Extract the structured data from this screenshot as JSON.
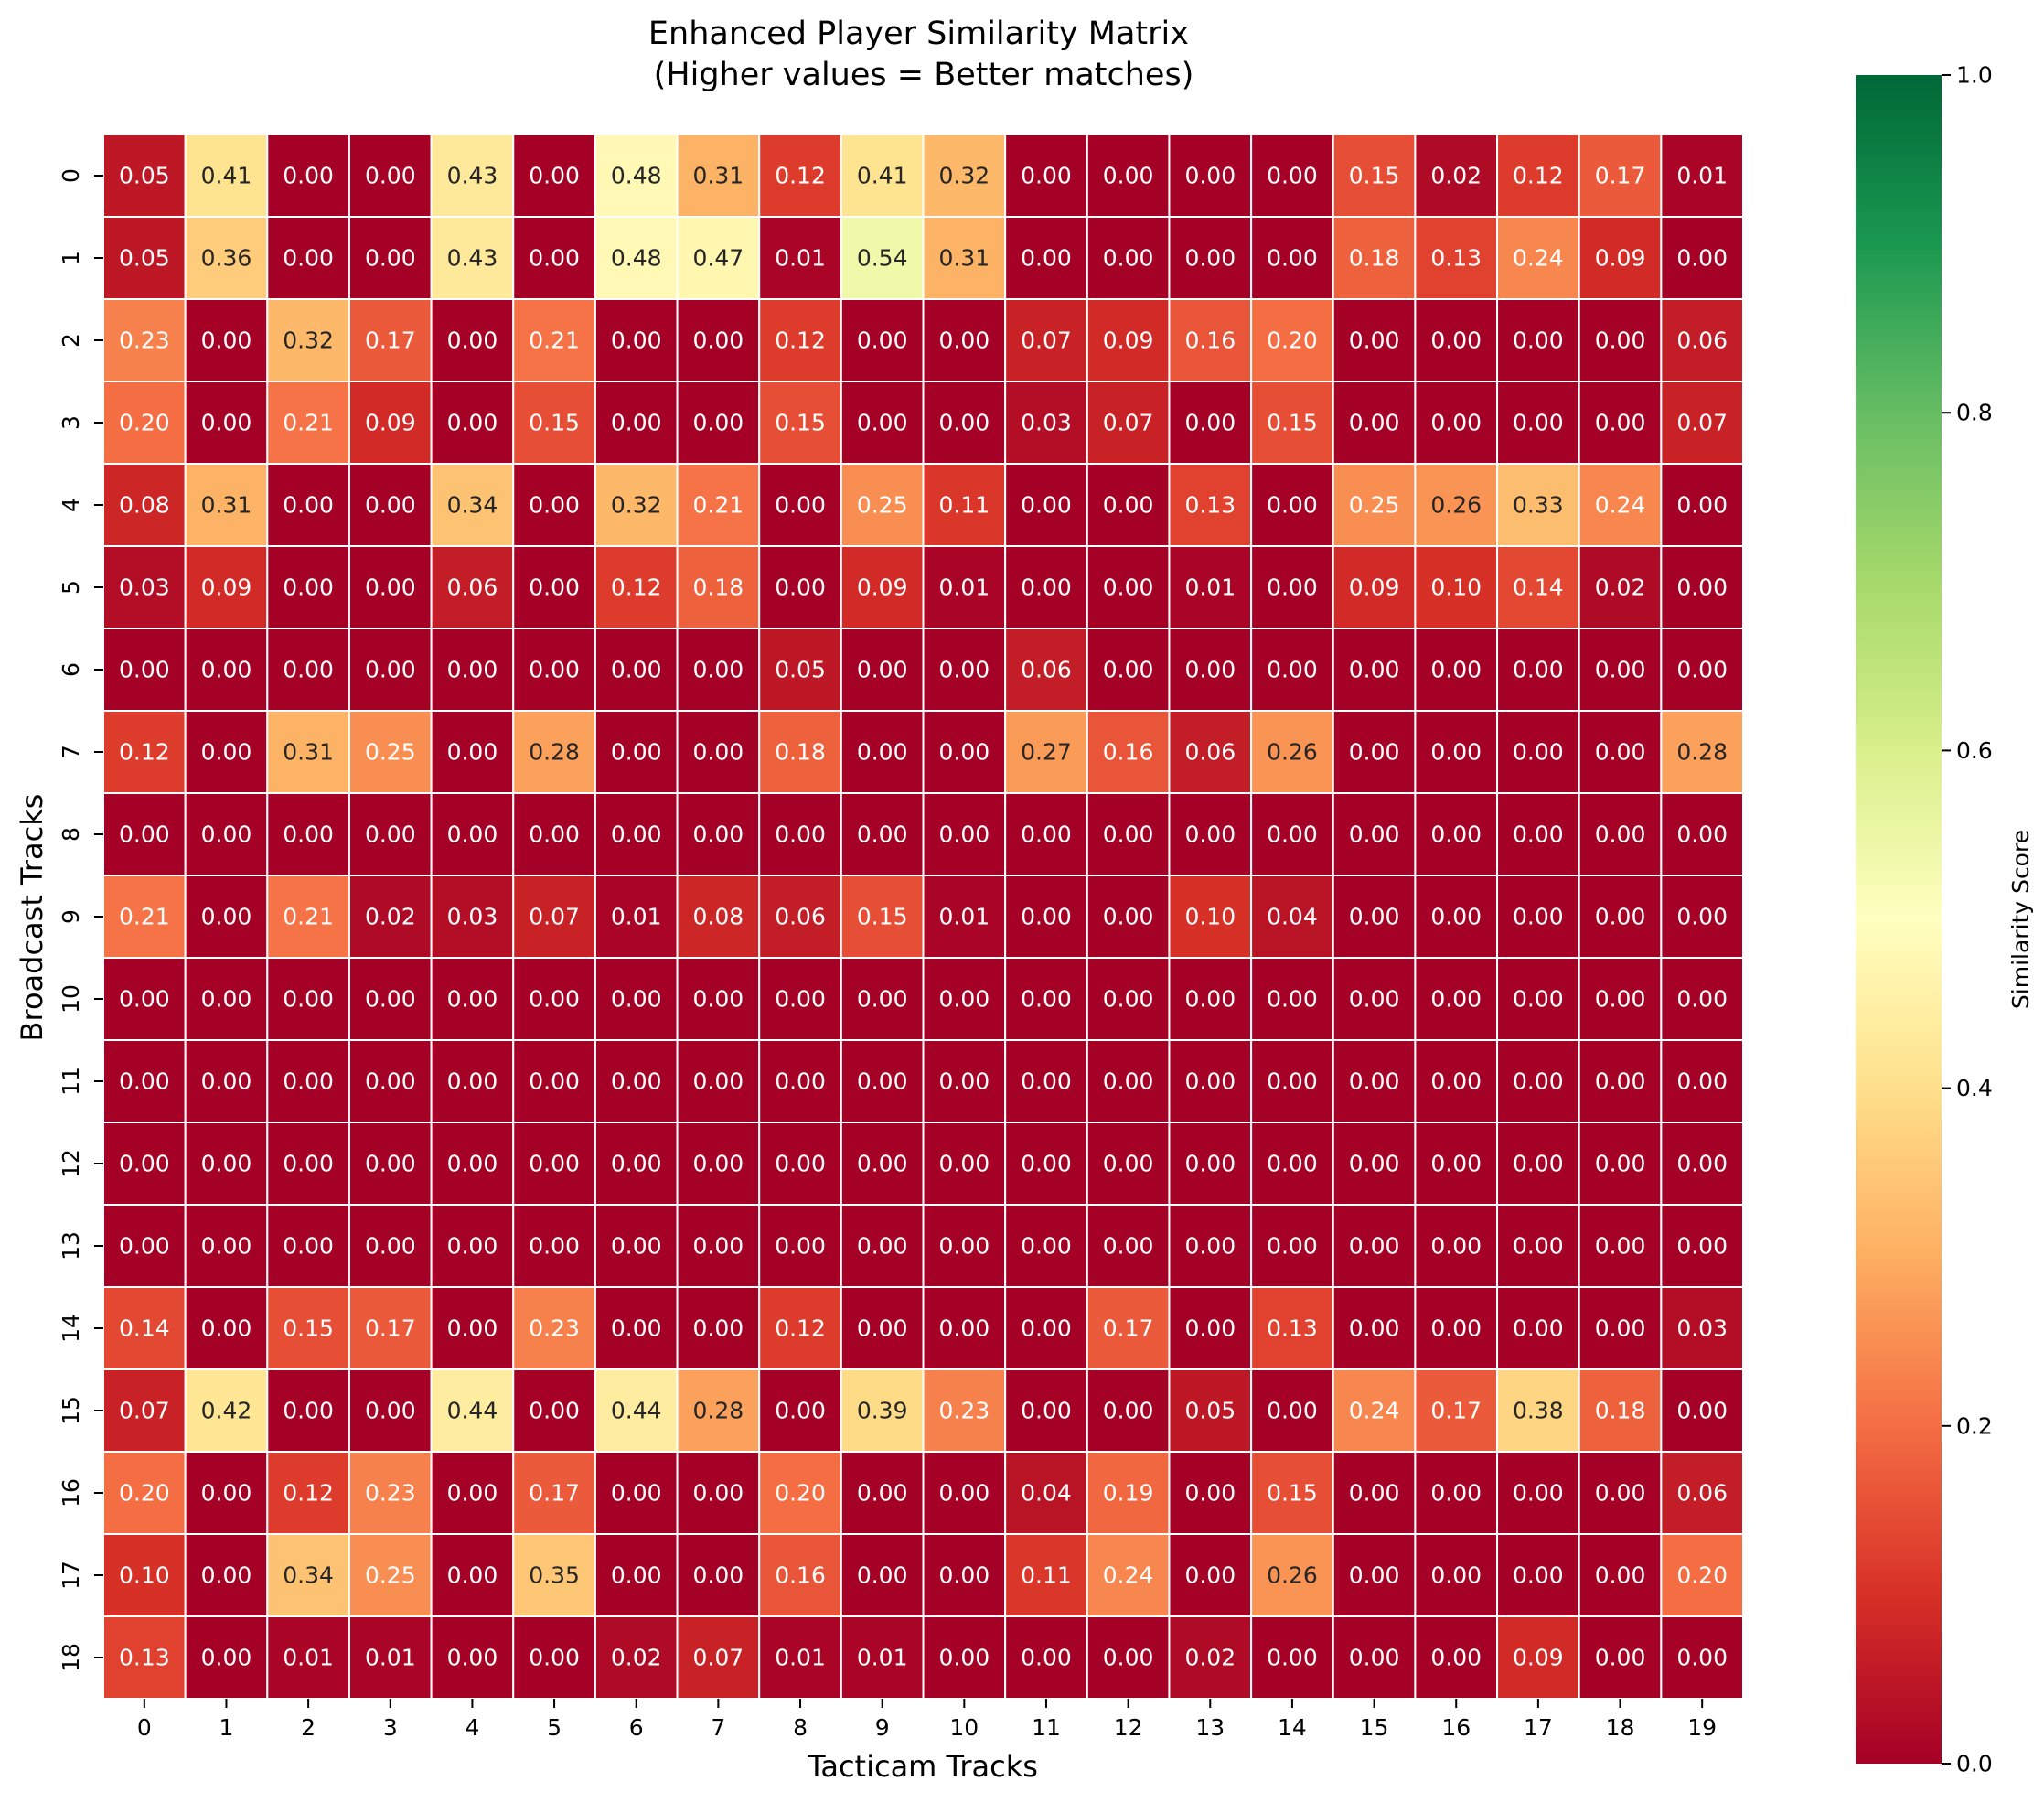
{
  "chart_data": {
    "type": "heatmap",
    "title": "Enhanced Player Similarity Matrix\n(Higher values = Better matches)",
    "title_lines": [
      "Enhanced Player Similarity Matrix",
      "(Higher values = Better matches)"
    ],
    "xlabel": "Tacticam Tracks",
    "ylabel": "Broadcast Tracks",
    "x_categories": [
      "0",
      "1",
      "2",
      "3",
      "4",
      "5",
      "6",
      "7",
      "8",
      "9",
      "10",
      "11",
      "12",
      "13",
      "14",
      "15",
      "16",
      "17",
      "18",
      "19"
    ],
    "y_categories": [
      "0",
      "1",
      "2",
      "3",
      "4",
      "5",
      "6",
      "7",
      "8",
      "9",
      "10",
      "11",
      "12",
      "13",
      "14",
      "15",
      "16",
      "17",
      "18"
    ],
    "values": [
      [
        0.05,
        0.41,
        0.0,
        0.0,
        0.43,
        0.0,
        0.48,
        0.31,
        0.12,
        0.41,
        0.32,
        0.0,
        0.0,
        0.0,
        0.0,
        0.15,
        0.02,
        0.12,
        0.17,
        0.01
      ],
      [
        0.05,
        0.36,
        0.0,
        0.0,
        0.43,
        0.0,
        0.48,
        0.47,
        0.01,
        0.54,
        0.31,
        0.0,
        0.0,
        0.0,
        0.0,
        0.18,
        0.13,
        0.24,
        0.09,
        0.0
      ],
      [
        0.23,
        0.0,
        0.32,
        0.17,
        0.0,
        0.21,
        0.0,
        0.0,
        0.12,
        0.0,
        0.0,
        0.07,
        0.09,
        0.16,
        0.2,
        0.0,
        0.0,
        0.0,
        0.0,
        0.06
      ],
      [
        0.2,
        0.0,
        0.21,
        0.09,
        0.0,
        0.15,
        0.0,
        0.0,
        0.15,
        0.0,
        0.0,
        0.03,
        0.07,
        0.0,
        0.15,
        0.0,
        0.0,
        0.0,
        0.0,
        0.07
      ],
      [
        0.08,
        0.31,
        0.0,
        0.0,
        0.34,
        0.0,
        0.32,
        0.21,
        0.0,
        0.25,
        0.11,
        0.0,
        0.0,
        0.13,
        0.0,
        0.25,
        0.26,
        0.33,
        0.24,
        0.0
      ],
      [
        0.03,
        0.09,
        0.0,
        0.0,
        0.06,
        0.0,
        0.12,
        0.18,
        0.0,
        0.09,
        0.01,
        0.0,
        0.0,
        0.01,
        0.0,
        0.09,
        0.1,
        0.14,
        0.02,
        0.0
      ],
      [
        0.0,
        0.0,
        0.0,
        0.0,
        0.0,
        0.0,
        0.0,
        0.0,
        0.05,
        0.0,
        0.0,
        0.06,
        0.0,
        0.0,
        0.0,
        0.0,
        0.0,
        0.0,
        0.0,
        0.0
      ],
      [
        0.12,
        0.0,
        0.31,
        0.25,
        0.0,
        0.28,
        0.0,
        0.0,
        0.18,
        0.0,
        0.0,
        0.27,
        0.16,
        0.06,
        0.26,
        0.0,
        0.0,
        0.0,
        0.0,
        0.28
      ],
      [
        0.0,
        0.0,
        0.0,
        0.0,
        0.0,
        0.0,
        0.0,
        0.0,
        0.0,
        0.0,
        0.0,
        0.0,
        0.0,
        0.0,
        0.0,
        0.0,
        0.0,
        0.0,
        0.0,
        0.0
      ],
      [
        0.21,
        0.0,
        0.21,
        0.02,
        0.03,
        0.07,
        0.01,
        0.08,
        0.06,
        0.15,
        0.01,
        0.0,
        0.0,
        0.1,
        0.04,
        0.0,
        0.0,
        0.0,
        0.0,
        0.0
      ],
      [
        0.0,
        0.0,
        0.0,
        0.0,
        0.0,
        0.0,
        0.0,
        0.0,
        0.0,
        0.0,
        0.0,
        0.0,
        0.0,
        0.0,
        0.0,
        0.0,
        0.0,
        0.0,
        0.0,
        0.0
      ],
      [
        0.0,
        0.0,
        0.0,
        0.0,
        0.0,
        0.0,
        0.0,
        0.0,
        0.0,
        0.0,
        0.0,
        0.0,
        0.0,
        0.0,
        0.0,
        0.0,
        0.0,
        0.0,
        0.0,
        0.0
      ],
      [
        0.0,
        0.0,
        0.0,
        0.0,
        0.0,
        0.0,
        0.0,
        0.0,
        0.0,
        0.0,
        0.0,
        0.0,
        0.0,
        0.0,
        0.0,
        0.0,
        0.0,
        0.0,
        0.0,
        0.0
      ],
      [
        0.0,
        0.0,
        0.0,
        0.0,
        0.0,
        0.0,
        0.0,
        0.0,
        0.0,
        0.0,
        0.0,
        0.0,
        0.0,
        0.0,
        0.0,
        0.0,
        0.0,
        0.0,
        0.0,
        0.0
      ],
      [
        0.14,
        0.0,
        0.15,
        0.17,
        0.0,
        0.23,
        0.0,
        0.0,
        0.12,
        0.0,
        0.0,
        0.0,
        0.17,
        0.0,
        0.13,
        0.0,
        0.0,
        0.0,
        0.0,
        0.03
      ],
      [
        0.07,
        0.42,
        0.0,
        0.0,
        0.44,
        0.0,
        0.44,
        0.28,
        0.0,
        0.39,
        0.23,
        0.0,
        0.0,
        0.05,
        0.0,
        0.24,
        0.17,
        0.38,
        0.18,
        0.0
      ],
      [
        0.2,
        0.0,
        0.12,
        0.23,
        0.0,
        0.17,
        0.0,
        0.0,
        0.2,
        0.0,
        0.0,
        0.04,
        0.19,
        0.0,
        0.15,
        0.0,
        0.0,
        0.0,
        0.0,
        0.06
      ],
      [
        0.1,
        0.0,
        0.34,
        0.25,
        0.0,
        0.35,
        0.0,
        0.0,
        0.16,
        0.0,
        0.0,
        0.11,
        0.24,
        0.0,
        0.26,
        0.0,
        0.0,
        0.0,
        0.0,
        0.2
      ],
      [
        0.13,
        0.0,
        0.01,
        0.01,
        0.0,
        0.0,
        0.02,
        0.07,
        0.01,
        0.01,
        0.0,
        0.0,
        0.0,
        0.02,
        0.0,
        0.0,
        0.0,
        0.09,
        0.0,
        0.0
      ]
    ],
    "value_format": "0.00",
    "colormap": "RdYlGn",
    "vmin": 0.0,
    "vmax": 1.0,
    "colorbar": {
      "label": "Similarity Score",
      "ticks": [
        "0.0",
        "0.2",
        "0.4",
        "0.6",
        "0.8",
        "1.0"
      ]
    },
    "colors": {
      "cell_border": "#ffffff",
      "dark_text": "#262626",
      "light_text": "#ffffff"
    }
  }
}
